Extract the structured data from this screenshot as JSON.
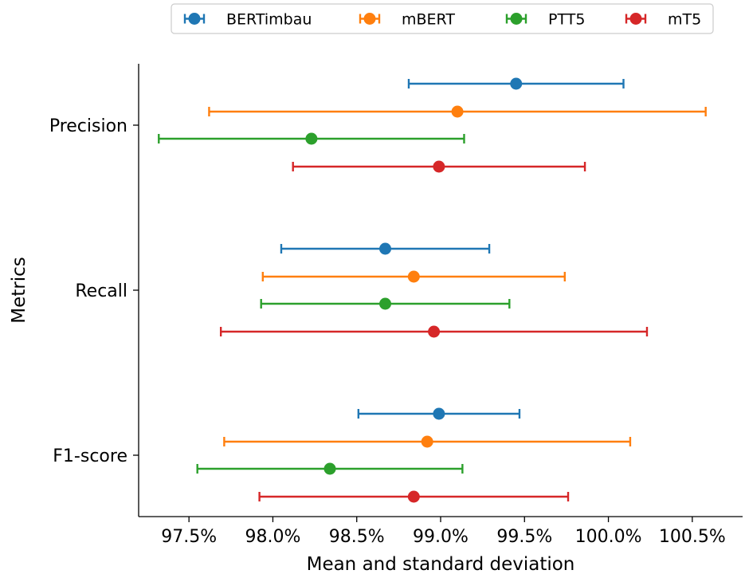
{
  "chart_data": {
    "type": "errorbar",
    "orientation": "horizontal",
    "xlabel": "Mean and standard deviation",
    "ylabel": "Metrics",
    "categories": [
      "Precision",
      "Recall",
      "F1-score"
    ],
    "xlim": [
      97.2,
      100.8
    ],
    "xticks": [
      97.5,
      98.0,
      98.5,
      99.0,
      99.5,
      100.0,
      100.5
    ],
    "xtick_labels": [
      "97.5%",
      "98.0%",
      "98.5%",
      "99.0%",
      "99.5%",
      "100.0%",
      "100.5%"
    ],
    "legend_position": "top-center",
    "series": [
      {
        "name": "BERTimbau",
        "color": "#1f77b4",
        "means": [
          99.45,
          98.67,
          98.99
        ],
        "stds": [
          0.64,
          0.62,
          0.48
        ]
      },
      {
        "name": "mBERT",
        "color": "#ff7f0e",
        "means": [
          99.1,
          98.84,
          98.92
        ],
        "stds": [
          1.48,
          0.9,
          1.21
        ]
      },
      {
        "name": "PTT5",
        "color": "#2ca02c",
        "means": [
          98.23,
          98.67,
          98.34
        ],
        "stds": [
          0.91,
          0.74,
          0.79
        ]
      },
      {
        "name": "mT5",
        "color": "#d62728",
        "means": [
          98.99,
          98.96,
          98.84
        ],
        "stds": [
          0.87,
          1.27,
          0.92
        ]
      }
    ]
  }
}
